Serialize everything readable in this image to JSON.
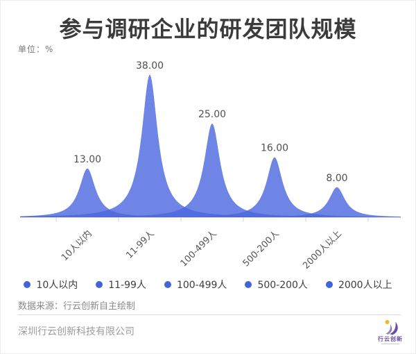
{
  "title": "参与调研企业的研发团队规模",
  "unit_label": "单位：%",
  "chart_data": {
    "type": "area",
    "categories": [
      "10人以内",
      "11-99人",
      "100-499人",
      "500-200人",
      "2000人以上"
    ],
    "values": [
      13,
      38,
      25,
      16,
      8
    ],
    "value_labels": [
      "13.00",
      "38.00",
      "25.00",
      "16.00",
      "8.00"
    ],
    "title": "参与调研企业的研发团队规模",
    "xlabel": "",
    "ylabel": "单位：%",
    "ylim": [
      0,
      42
    ],
    "grid": false,
    "legend_position": "bottom",
    "series_style": "overlapping sharp spikes (one peak per category), semi-transparent single-color fill"
  },
  "legend": {
    "items": [
      "10人以内",
      "11-99人",
      "100-499人",
      "500-200人",
      "2000人以上"
    ]
  },
  "source_note": "数据来源：行云创新自主绘制",
  "footer": {
    "company": "深圳行云创新科技有限公司",
    "logo_text": "行云创新"
  },
  "colors": {
    "area_fill": "#4a67de",
    "area_fill_opacity": "0.8",
    "legend_marker": "#4164d9",
    "axis_line": "#cccccc",
    "value_label": "#4f4f4f",
    "category_label": "#555555",
    "logo_purple": "#6b4fa1",
    "logo_purple_light": "#8f7cc0",
    "logo_yellow": "#f2b62c"
  }
}
